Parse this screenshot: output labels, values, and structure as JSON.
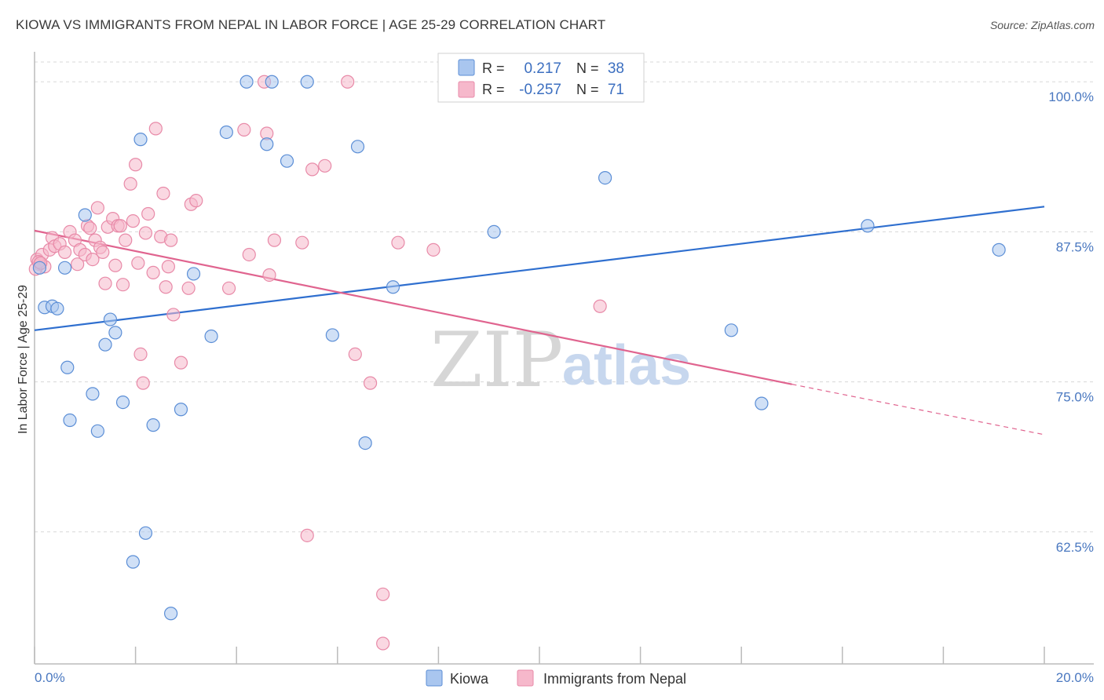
{
  "title": "KIOWA VS IMMIGRANTS FROM NEPAL IN LABOR FORCE | AGE 25-29 CORRELATION CHART",
  "source": "Source: ZipAtlas.com",
  "watermark": {
    "zip": "ZIP",
    "atlas": "atlas"
  },
  "legend": {
    "rows": [
      {
        "r_label": "R =",
        "r_value": "0.217",
        "n_label": "N =",
        "n_value": "38"
      },
      {
        "r_label": "R =",
        "r_value": "-0.257",
        "n_label": "N =",
        "n_value": "71"
      }
    ]
  },
  "colors": {
    "kiowa_fill": "#a9c6ef",
    "kiowa_stroke": "#5b8ed6",
    "kiowa_line": "#2f6fcf",
    "nepal_fill": "#f6b8cb",
    "nepal_stroke": "#e88aa8",
    "nepal_line": "#e0648f",
    "axis_text": "#4a78c0",
    "grid": "#d8d8d8"
  },
  "chart_data": {
    "type": "scatter",
    "title": "KIOWA VS IMMIGRANTS FROM NEPAL IN LABOR FORCE | AGE 25-29 CORRELATION CHART",
    "xlabel": "",
    "ylabel": "In Labor Force | Age 25-29",
    "xlim": [
      0,
      20
    ],
    "ylim": [
      51.5,
      102.5
    ],
    "x_tick_labels": [
      "0.0%",
      "20.0%"
    ],
    "y_ticks": [
      62.5,
      75.0,
      87.5,
      100.0
    ],
    "y_tick_labels": [
      "62.5%",
      "75.0%",
      "87.5%",
      "100.0%"
    ],
    "grid": "horizontal dashed",
    "legend_position": "top-center",
    "series": [
      {
        "name": "Kiowa",
        "r": 0.217,
        "n": 38,
        "trend": {
          "x": [
            0,
            20
          ],
          "y": [
            79.3,
            89.6
          ]
        },
        "points": [
          [
            0.1,
            84.5
          ],
          [
            0.2,
            81.2
          ],
          [
            0.35,
            81.3
          ],
          [
            0.45,
            81.1
          ],
          [
            0.6,
            84.5
          ],
          [
            0.65,
            76.2
          ],
          [
            0.7,
            71.8
          ],
          [
            1.0,
            88.9
          ],
          [
            1.15,
            74.0
          ],
          [
            1.25,
            70.9
          ],
          [
            1.4,
            78.1
          ],
          [
            1.5,
            80.2
          ],
          [
            1.6,
            79.1
          ],
          [
            1.75,
            73.3
          ],
          [
            1.95,
            60.0
          ],
          [
            2.1,
            95.2
          ],
          [
            2.2,
            62.4
          ],
          [
            2.35,
            71.4
          ],
          [
            2.7,
            55.7
          ],
          [
            2.9,
            72.7
          ],
          [
            3.15,
            84.0
          ],
          [
            3.5,
            78.8
          ],
          [
            3.8,
            95.8
          ],
          [
            4.2,
            100.0
          ],
          [
            4.6,
            94.8
          ],
          [
            4.7,
            100.0
          ],
          [
            5.0,
            93.4
          ],
          [
            5.4,
            100.0
          ],
          [
            5.9,
            78.9
          ],
          [
            6.4,
            94.6
          ],
          [
            6.55,
            69.9
          ],
          [
            7.1,
            82.9
          ],
          [
            9.1,
            87.5
          ],
          [
            11.3,
            92.0
          ],
          [
            13.8,
            79.3
          ],
          [
            14.4,
            73.2
          ],
          [
            16.5,
            88.0
          ],
          [
            19.1,
            86.0
          ]
        ]
      },
      {
        "name": "Immigrants from Nepal",
        "r": -0.257,
        "n": 71,
        "trend": {
          "x": [
            0,
            15.0
          ],
          "y": [
            87.6,
            74.8
          ]
        },
        "trend_dashed": {
          "x": [
            15.0,
            20
          ],
          "y": [
            74.8,
            70.6
          ]
        },
        "points": [
          [
            0.05,
            85.2
          ],
          [
            0.1,
            84.8
          ],
          [
            0.15,
            85.6
          ],
          [
            0.2,
            84.6
          ],
          [
            0.3,
            86.0
          ],
          [
            0.35,
            87.0
          ],
          [
            0.4,
            86.3
          ],
          [
            0.5,
            86.5
          ],
          [
            0.6,
            85.8
          ],
          [
            0.7,
            87.5
          ],
          [
            0.8,
            86.8
          ],
          [
            0.85,
            84.8
          ],
          [
            0.9,
            86.0
          ],
          [
            1.0,
            85.6
          ],
          [
            1.05,
            88.0
          ],
          [
            1.1,
            87.8
          ],
          [
            1.15,
            85.2
          ],
          [
            1.2,
            86.8
          ],
          [
            1.25,
            89.5
          ],
          [
            1.3,
            86.2
          ],
          [
            1.35,
            85.8
          ],
          [
            1.4,
            83.2
          ],
          [
            1.45,
            87.9
          ],
          [
            1.55,
            88.6
          ],
          [
            1.6,
            84.7
          ],
          [
            1.65,
            88.0
          ],
          [
            1.7,
            88.0
          ],
          [
            1.75,
            83.1
          ],
          [
            1.8,
            86.8
          ],
          [
            1.9,
            91.5
          ],
          [
            1.95,
            88.4
          ],
          [
            2.0,
            93.1
          ],
          [
            2.05,
            84.9
          ],
          [
            2.1,
            77.3
          ],
          [
            2.15,
            74.9
          ],
          [
            2.2,
            87.4
          ],
          [
            2.25,
            89.0
          ],
          [
            2.35,
            84.1
          ],
          [
            2.4,
            96.1
          ],
          [
            2.5,
            87.1
          ],
          [
            2.55,
            90.7
          ],
          [
            2.6,
            82.9
          ],
          [
            2.65,
            84.6
          ],
          [
            2.7,
            86.8
          ],
          [
            2.75,
            80.6
          ],
          [
            2.9,
            76.6
          ],
          [
            3.05,
            82.8
          ],
          [
            3.1,
            89.8
          ],
          [
            3.2,
            90.1
          ],
          [
            3.85,
            82.8
          ],
          [
            4.15,
            96.0
          ],
          [
            4.25,
            85.6
          ],
          [
            4.55,
            100.0
          ],
          [
            4.6,
            95.7
          ],
          [
            4.65,
            83.9
          ],
          [
            4.75,
            86.8
          ],
          [
            5.3,
            86.6
          ],
          [
            5.4,
            62.2
          ],
          [
            5.5,
            92.7
          ],
          [
            5.75,
            93.0
          ],
          [
            6.2,
            100.0
          ],
          [
            6.35,
            77.3
          ],
          [
            6.65,
            74.9
          ],
          [
            6.9,
            57.3
          ],
          [
            6.9,
            53.2
          ],
          [
            7.2,
            86.6
          ],
          [
            7.9,
            86.0
          ],
          [
            11.2,
            81.3
          ],
          [
            0.02,
            84.4
          ],
          [
            0.08,
            85.0
          ],
          [
            0.12,
            84.9
          ]
        ]
      }
    ]
  },
  "bottom_legend": [
    {
      "label": "Kiowa"
    },
    {
      "label": "Immigrants from Nepal"
    }
  ]
}
